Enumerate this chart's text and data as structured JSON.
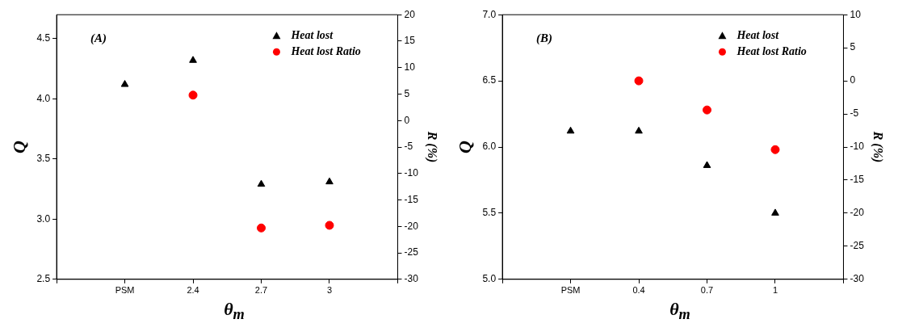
{
  "chart_data": [
    {
      "type": "scatter",
      "annotations": [
        "(A)"
      ],
      "xlabel": "θ$_{m}$",
      "ylabel": "Q",
      "y2label": "R (%)",
      "legend": "top right",
      "categories": [
        null,
        "PSM",
        "2.4",
        "2.7",
        "3",
        null
      ],
      "series": [
        {
          "name": "Heat lost",
          "color": "#000000",
          "marker": "triangle",
          "values": [
            null,
            4.12,
            4.32,
            3.29,
            3.31,
            null
          ]
        },
        {
          "name": "Heat lost Ratio",
          "color": "#ff0000",
          "marker": "circle",
          "axis": "y2",
          "values": [
            null,
            null,
            4.8,
            -20.3,
            -19.8,
            null
          ]
        }
      ],
      "ylim": [
        2.5,
        4.7
      ],
      "yticks": [
        2.5,
        {
          "value": 3,
          "label": "3.0"
        },
        3.5,
        {
          "value": 4,
          "label": "4.0"
        },
        4.5
      ],
      "y2lim": [
        -30,
        20
      ],
      "y2ticks": [
        -30,
        -25,
        -20,
        -15,
        -10,
        -5,
        0,
        5,
        10,
        15,
        20
      ]
    },
    {
      "type": "scatter",
      "annotations": [
        "(B)"
      ],
      "xlabel": "θ$_{m}$",
      "ylabel": "Q",
      "y2label": "R (%)",
      "legend": "top right",
      "categories": [
        null,
        "PSM",
        "0.4",
        "0.7",
        "1",
        null
      ],
      "series": [
        {
          "name": "Heat lost",
          "color": "#000000",
          "marker": "triangle",
          "values": [
            null,
            6.12,
            6.12,
            5.86,
            5.5,
            null
          ]
        },
        {
          "name": "Heat lost Ratio",
          "color": "#ff0000",
          "marker": "circle",
          "axis": "y2",
          "values": [
            null,
            null,
            0,
            -4.4,
            -10.4,
            null
          ]
        }
      ],
      "ylim": [
        5,
        7
      ],
      "yticks": [
        {
          "value": 5,
          "label": "5.0"
        },
        5.5,
        {
          "value": 6,
          "label": "6.0"
        },
        6.5,
        {
          "value": 7,
          "label": "7.0"
        }
      ],
      "y2lim": [
        -30,
        10
      ],
      "y2ticks": [
        -30,
        -25,
        -20,
        -15,
        -10,
        -5,
        0,
        5,
        10
      ]
    }
  ]
}
